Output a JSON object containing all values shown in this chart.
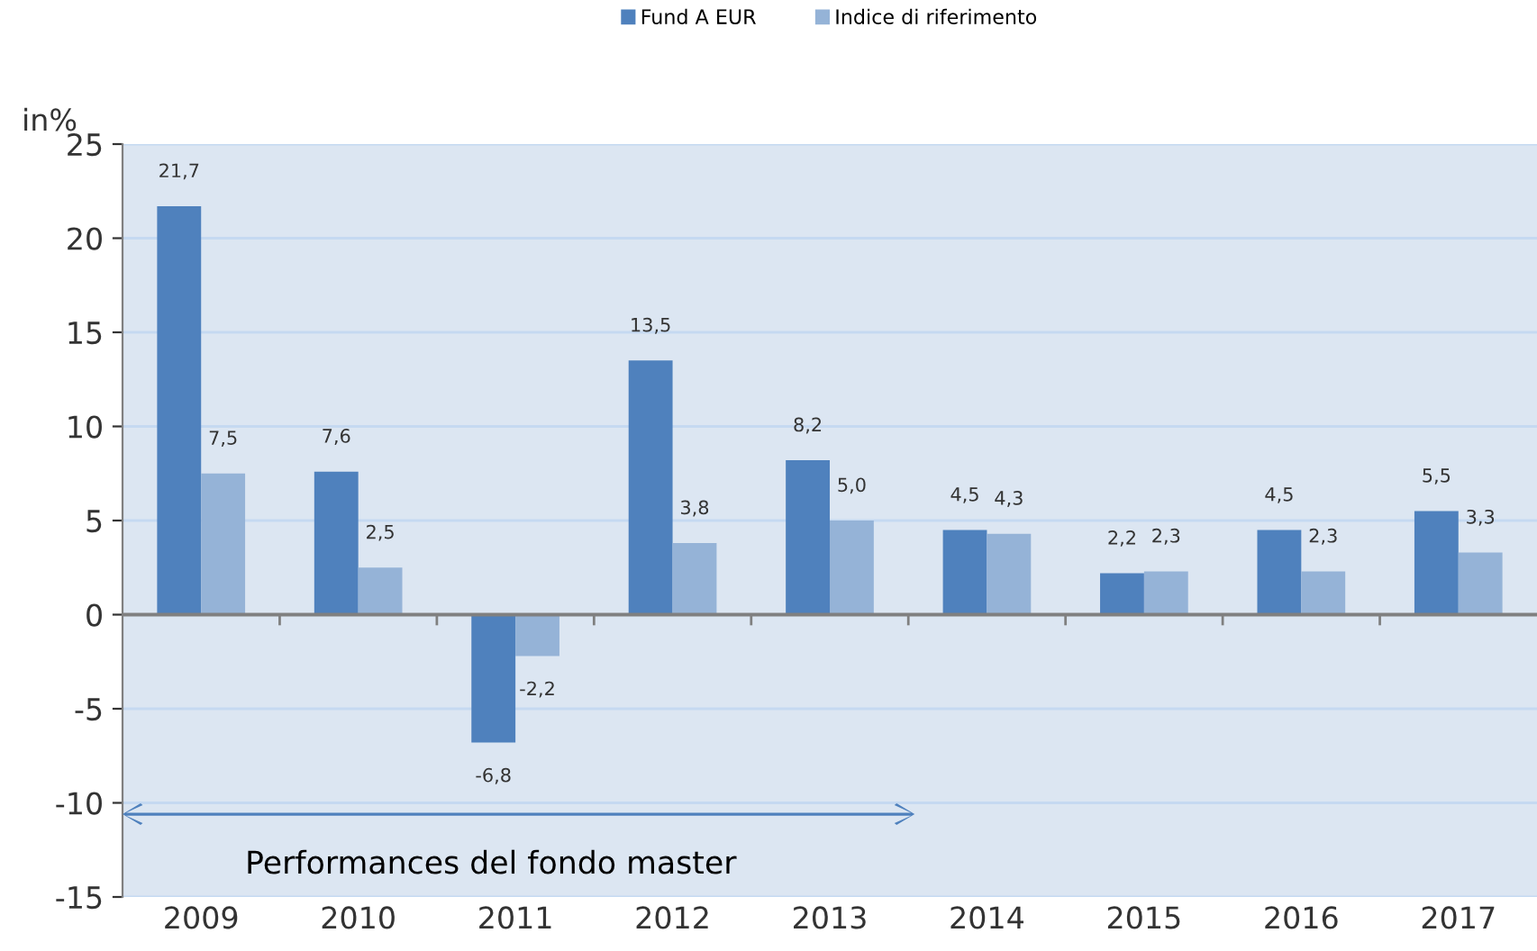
{
  "chart_data": {
    "type": "bar",
    "ylabel": "in%",
    "categories": [
      "2009",
      "2010",
      "2011",
      "2012",
      "2013",
      "2014",
      "2015",
      "2016",
      "2017"
    ],
    "series": [
      {
        "name": "Fund A EUR",
        "color": "#4f81bd",
        "values": [
          21.7,
          7.6,
          -6.8,
          13.5,
          8.2,
          4.5,
          2.2,
          4.5,
          5.5
        ],
        "value_labels": [
          "21,7",
          "7,6",
          "-6,8",
          "13,5",
          "8,2",
          "4,5",
          "2,2",
          "4,5",
          "5,5"
        ]
      },
      {
        "name": "Indice di riferimento",
        "color": "#95b3d7",
        "values": [
          7.5,
          2.5,
          -2.2,
          3.8,
          5.0,
          4.3,
          2.3,
          2.3,
          3.3
        ],
        "value_labels": [
          "7,5",
          "2,5",
          "-2,2",
          "3,8",
          "5,0",
          "4,3",
          "2,3",
          "2,3",
          "3,3"
        ]
      }
    ],
    "ylim": [
      -15,
      25
    ],
    "yticks": [
      -15,
      -10,
      -5,
      0,
      5,
      10,
      15,
      20,
      25
    ],
    "grid": "y",
    "legend": "top",
    "annotations": [
      "Performances del fondo master"
    ]
  }
}
